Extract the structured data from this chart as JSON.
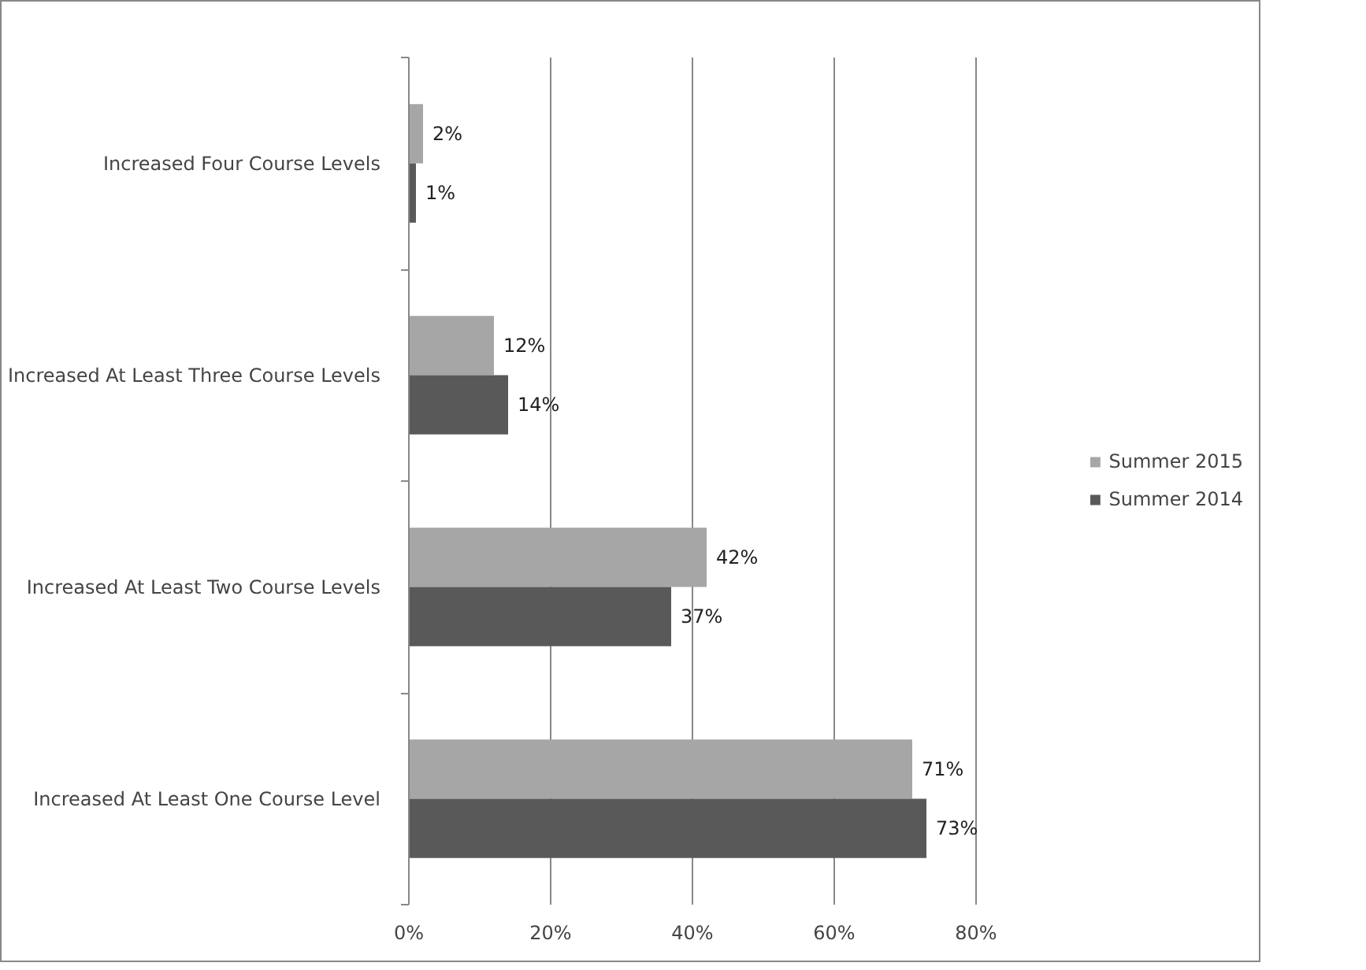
{
  "chart_data": {
    "type": "bar",
    "orientation": "horizontal",
    "categories": [
      "Increased Four Course Levels",
      "Increased At Least Three Course Levels",
      "Increased At Least Two Course Levels",
      "Increased At Least One Course Level"
    ],
    "series": [
      {
        "name": "Summer 2015",
        "color": "#a6a6a6",
        "values": [
          2,
          12,
          42,
          71
        ],
        "value_labels": [
          "2%",
          "12%",
          "42%",
          "71%"
        ]
      },
      {
        "name": "Summer 2014",
        "color": "#595959",
        "values": [
          1,
          14,
          37,
          73
        ],
        "value_labels": [
          "1%",
          "14%",
          "37%",
          "73%"
        ]
      }
    ],
    "xlim": [
      0,
      80
    ],
    "xticks": [
      {
        "value": 0,
        "label": "0%"
      },
      {
        "value": 20,
        "label": "20%"
      },
      {
        "value": 40,
        "label": "40%"
      },
      {
        "value": 60,
        "label": "60%"
      },
      {
        "value": 80,
        "label": "80%"
      }
    ],
    "grid": "x",
    "legend": "right"
  }
}
